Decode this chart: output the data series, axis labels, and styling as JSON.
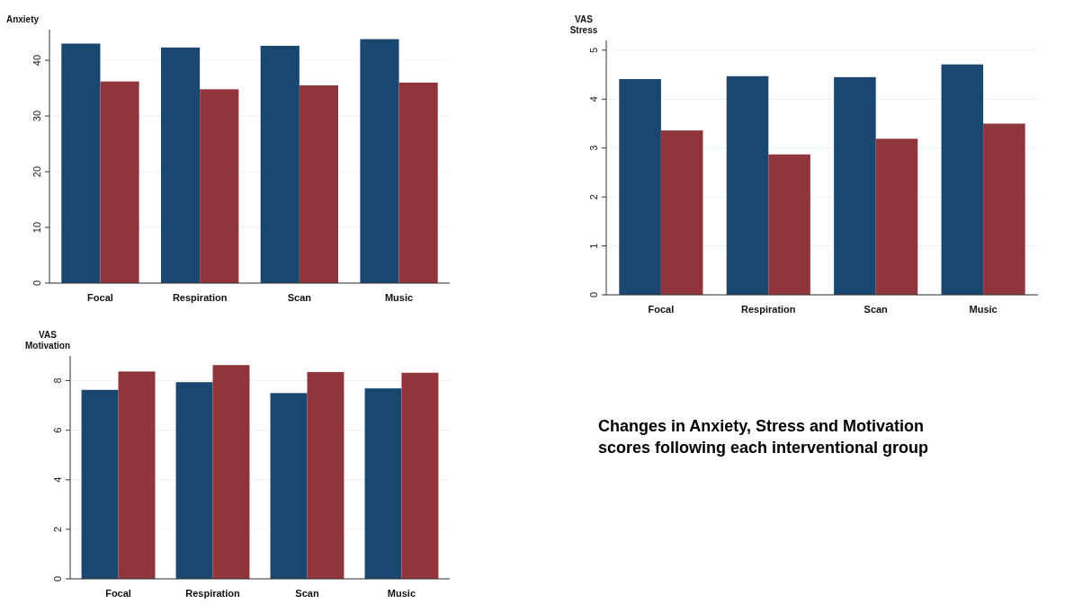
{
  "chart_data": [
    {
      "type": "bar",
      "ylabel": "Anxiety",
      "categories": [
        "Focal",
        "Respiration",
        "Scan",
        "Music"
      ],
      "series": [
        {
          "color": "#1a476f",
          "values": [
            43.0,
            42.3,
            42.6,
            43.8
          ]
        },
        {
          "color": "#90353b",
          "values": [
            36.2,
            34.8,
            35.5,
            36.0
          ]
        }
      ],
      "ylim": [
        0,
        45.5
      ],
      "yticks": [
        0,
        10,
        20,
        30,
        40
      ],
      "grid": "y"
    },
    {
      "type": "bar",
      "ylabel": "VAS Stress",
      "categories": [
        "Focal",
        "Respiration",
        "Scan",
        "Music"
      ],
      "series": [
        {
          "color": "#1a476f",
          "values": [
            4.41,
            4.47,
            4.45,
            4.71
          ]
        },
        {
          "color": "#90353b",
          "values": [
            3.36,
            2.87,
            3.19,
            3.5
          ]
        }
      ],
      "ylim": [
        0,
        5.2
      ],
      "yticks": [
        0,
        1,
        2,
        3,
        4,
        5
      ],
      "grid": "y"
    },
    {
      "type": "bar",
      "ylabel": "VAS Motivation",
      "categories": [
        "Focal",
        "Respiration",
        "Scan",
        "Music"
      ],
      "series": [
        {
          "color": "#1a476f",
          "values": [
            7.63,
            7.94,
            7.5,
            7.69
          ]
        },
        {
          "color": "#90353b",
          "values": [
            8.37,
            8.63,
            8.35,
            8.32
          ]
        }
      ],
      "ylim": [
        0,
        9
      ],
      "yticks": [
        0,
        2,
        4,
        6,
        8
      ],
      "grid": "y"
    },
    {
      "type": "other",
      "title": "Changes in Anxiety, Stress and Motivation scores following each interventional group"
    }
  ]
}
